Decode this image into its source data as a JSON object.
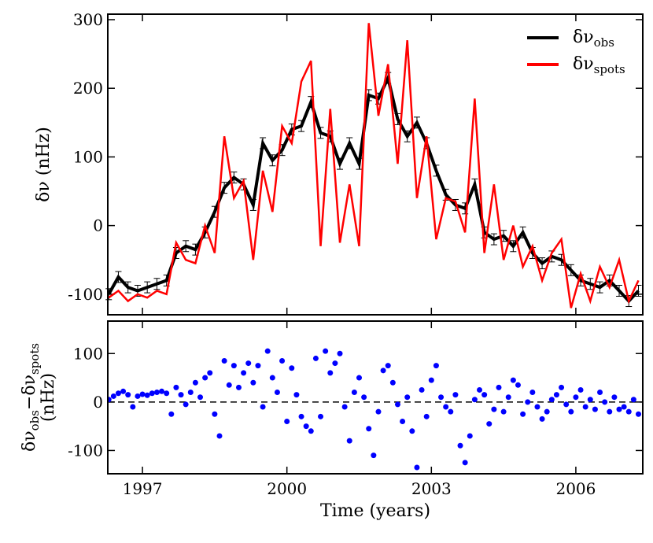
{
  "chart_data": [
    {
      "type": "line",
      "ylabel": "δν (nHz)",
      "x": [
        1996.3,
        1996.5,
        1996.7,
        1996.9,
        1997.1,
        1997.3,
        1997.5,
        1997.7,
        1997.9,
        1998.1,
        1998.3,
        1998.5,
        1998.7,
        1998.9,
        1999.1,
        1999.3,
        1999.5,
        1999.7,
        1999.9,
        2000.1,
        2000.3,
        2000.5,
        2000.7,
        2000.9,
        2001.1,
        2001.3,
        2001.5,
        2001.7,
        2001.9,
        2002.1,
        2002.3,
        2002.5,
        2002.7,
        2002.9,
        2003.1,
        2003.3,
        2003.5,
        2003.7,
        2003.9,
        2004.1,
        2004.3,
        2004.5,
        2004.7,
        2004.9,
        2005.1,
        2005.3,
        2005.5,
        2005.7,
        2005.9,
        2006.1,
        2006.3,
        2006.5,
        2006.7,
        2006.9,
        2007.1,
        2007.3
      ],
      "series": [
        {
          "name": "δν_obs",
          "color": "#000000",
          "width": 4,
          "values": [
            -100,
            -75,
            -90,
            -95,
            -90,
            -85,
            -80,
            -40,
            -30,
            -35,
            -10,
            20,
            55,
            70,
            60,
            30,
            120,
            95,
            110,
            140,
            145,
            180,
            135,
            130,
            90,
            120,
            90,
            190,
            185,
            215,
            155,
            130,
            150,
            120,
            80,
            45,
            30,
            25,
            60,
            -10,
            -20,
            -15,
            -30,
            -10,
            -40,
            -55,
            -45,
            -50,
            -65,
            -80,
            -85,
            -90,
            -80,
            -95,
            -110,
            -95
          ],
          "errors": [
            8,
            8,
            8,
            8,
            8,
            8,
            8,
            8,
            8,
            8,
            8,
            8,
            8,
            8,
            8,
            8,
            8,
            8,
            8,
            8,
            8,
            8,
            8,
            8,
            8,
            8,
            8,
            8,
            8,
            8,
            8,
            8,
            8,
            8,
            8,
            8,
            8,
            8,
            8,
            8,
            8,
            8,
            8,
            8,
            8,
            8,
            8,
            8,
            8,
            8,
            8,
            8,
            8,
            8,
            8,
            8
          ]
        },
        {
          "name": "δν_spots",
          "color": "#ff0000",
          "width": 2.5,
          "values": [
            -105,
            -95,
            -110,
            -100,
            -105,
            -95,
            -100,
            -25,
            -50,
            -55,
            0,
            -40,
            130,
            40,
            65,
            -50,
            80,
            20,
            145,
            120,
            210,
            240,
            -30,
            170,
            -25,
            60,
            -30,
            295,
            160,
            235,
            90,
            270,
            40,
            130,
            -20,
            40,
            35,
            -10,
            185,
            -40,
            60,
            -50,
            0,
            -60,
            -30,
            -80,
            -40,
            -20,
            -120,
            -70,
            -110,
            -60,
            -90,
            -50,
            -110,
            -80
          ]
        }
      ],
      "xlim": [
        1996.28,
        2007.39
      ],
      "xticks": [
        1997,
        2000,
        2003,
        2006
      ],
      "ylim": [
        -130,
        308
      ],
      "yticks": [
        -100,
        0,
        100,
        200,
        300
      ],
      "legend": "upper right"
    },
    {
      "type": "scatter",
      "ylabel": [
        "δν_obs−δν_spots",
        "(nHz)"
      ],
      "xlabel": "Time (years)",
      "color": "#0000ff",
      "hline": 0,
      "x": [
        1996.3,
        1996.4,
        1996.5,
        1996.6,
        1996.7,
        1996.8,
        1996.9,
        1997.0,
        1997.1,
        1997.2,
        1997.3,
        1997.4,
        1997.5,
        1997.6,
        1997.7,
        1997.8,
        1997.9,
        1998.0,
        1998.1,
        1998.2,
        1998.3,
        1998.4,
        1998.5,
        1998.6,
        1998.7,
        1998.8,
        1998.9,
        1999.0,
        1999.1,
        1999.2,
        1999.3,
        1999.4,
        1999.5,
        1999.6,
        1999.7,
        1999.8,
        1999.9,
        2000.0,
        2000.1,
        2000.2,
        2000.3,
        2000.4,
        2000.5,
        2000.6,
        2000.7,
        2000.8,
        2000.9,
        2001.0,
        2001.1,
        2001.2,
        2001.3,
        2001.4,
        2001.5,
        2001.6,
        2001.7,
        2001.8,
        2001.9,
        2002.0,
        2002.1,
        2002.2,
        2002.3,
        2002.4,
        2002.5,
        2002.6,
        2002.7,
        2002.8,
        2002.9,
        2003.0,
        2003.1,
        2003.2,
        2003.3,
        2003.4,
        2003.5,
        2003.6,
        2003.7,
        2003.8,
        2003.9,
        2004.0,
        2004.1,
        2004.2,
        2004.3,
        2004.4,
        2004.5,
        2004.6,
        2004.7,
        2004.8,
        2004.9,
        2005.0,
        2005.1,
        2005.2,
        2005.3,
        2005.4,
        2005.5,
        2005.6,
        2005.7,
        2005.8,
        2005.9,
        2006.0,
        2006.1,
        2006.2,
        2006.3,
        2006.4,
        2006.5,
        2006.6,
        2006.7,
        2006.8,
        2006.9,
        2007.0,
        2007.1,
        2007.2,
        2007.3
      ],
      "values": [
        5,
        12,
        18,
        22,
        15,
        -10,
        12,
        16,
        14,
        18,
        20,
        22,
        18,
        -25,
        30,
        15,
        -5,
        20,
        40,
        10,
        50,
        60,
        -25,
        -70,
        85,
        35,
        75,
        30,
        60,
        80,
        40,
        75,
        -10,
        105,
        50,
        20,
        85,
        -40,
        70,
        15,
        -30,
        -50,
        -60,
        90,
        -30,
        105,
        60,
        80,
        100,
        -10,
        -80,
        20,
        50,
        10,
        -55,
        -110,
        -20,
        65,
        75,
        40,
        -5,
        -40,
        10,
        -60,
        -135,
        25,
        -30,
        45,
        75,
        10,
        -10,
        -20,
        15,
        -90,
        -125,
        -70,
        5,
        25,
        15,
        -45,
        -15,
        30,
        -20,
        10,
        45,
        35,
        -25,
        0,
        20,
        -10,
        -35,
        -20,
        5,
        15,
        30,
        -5,
        -20,
        10,
        25,
        -10,
        5,
        -15,
        20,
        0,
        -20,
        10,
        -15,
        -10,
        -20,
        5,
        -25
      ],
      "xlim": [
        1996.28,
        2007.39
      ],
      "xticks": [
        1997,
        2000,
        2003,
        2006
      ],
      "ylim": [
        -148,
        167
      ],
      "yticks": [
        -100,
        0,
        100
      ]
    }
  ]
}
